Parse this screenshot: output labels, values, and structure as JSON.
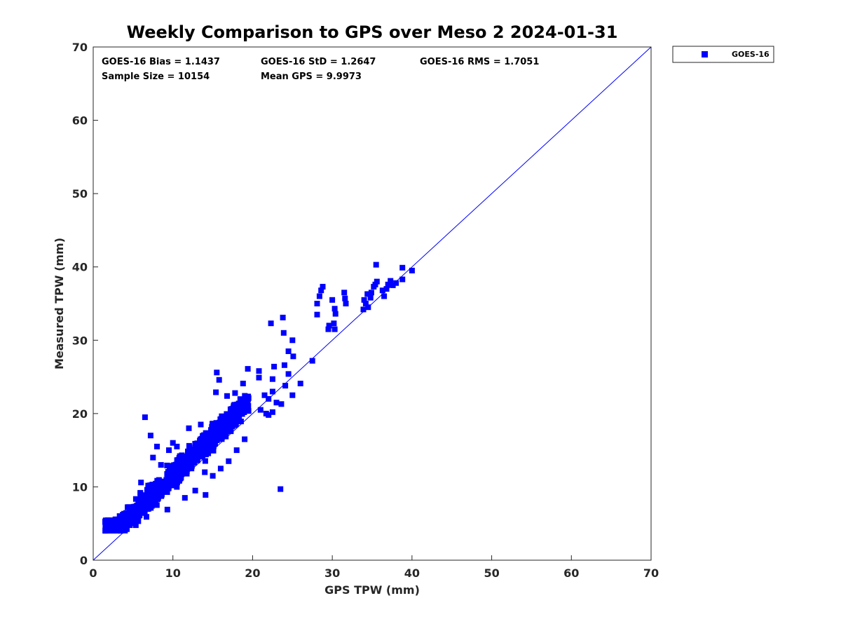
{
  "chart_data": {
    "type": "scatter",
    "title": "Weekly Comparison to GPS over Meso 2 2024-01-31",
    "xlabel": "GPS TPW (mm)",
    "ylabel": "Measured TPW (mm)",
    "xlim": [
      0,
      70
    ],
    "ylim": [
      0,
      70
    ],
    "xticks": [
      "0",
      "10",
      "20",
      "30",
      "40",
      "50",
      "60",
      "70"
    ],
    "yticks": [
      "0",
      "10",
      "20",
      "30",
      "40",
      "50",
      "60",
      "70"
    ],
    "grid": false,
    "legend_position": "outside-top-right",
    "series": [
      {
        "name": "GOES-16",
        "color": "#0000ff",
        "marker": "square",
        "dense_cloud": {
          "x_range": [
            1.5,
            19.5
          ],
          "slope": 1.06,
          "offset": 0.9,
          "spread": 1.6,
          "n": 900
        },
        "outliers": [
          [
            23.5,
            9.7
          ],
          [
            22.3,
            32.3
          ],
          [
            23.8,
            33.1
          ],
          [
            23.9,
            31.0
          ],
          [
            24.5,
            28.5
          ],
          [
            25.0,
            30.0
          ],
          [
            25.1,
            27.8
          ],
          [
            24.0,
            26.6
          ],
          [
            22.7,
            26.4
          ],
          [
            24.5,
            25.4
          ],
          [
            24.1,
            23.8
          ],
          [
            26.0,
            24.1
          ],
          [
            22.5,
            24.7
          ],
          [
            20.8,
            25.8
          ],
          [
            19.4,
            26.1
          ],
          [
            20.8,
            24.9
          ],
          [
            21.5,
            22.5
          ],
          [
            22.0,
            22.0
          ],
          [
            22.5,
            23.0
          ],
          [
            23.0,
            21.5
          ],
          [
            25.0,
            22.5
          ],
          [
            23.6,
            21.3
          ],
          [
            21.0,
            20.5
          ],
          [
            22.0,
            19.8
          ],
          [
            22.5,
            20.2
          ],
          [
            21.7,
            20.0
          ],
          [
            27.5,
            27.2
          ],
          [
            28.1,
            35.0
          ],
          [
            28.4,
            36.0
          ],
          [
            28.6,
            36.8
          ],
          [
            28.8,
            37.3
          ],
          [
            28.1,
            33.5
          ],
          [
            30.0,
            35.5
          ],
          [
            30.3,
            34.3
          ],
          [
            30.4,
            33.6
          ],
          [
            30.2,
            32.3
          ],
          [
            30.3,
            31.5
          ],
          [
            29.5,
            31.5
          ],
          [
            29.6,
            32.0
          ],
          [
            31.5,
            36.5
          ],
          [
            31.6,
            35.7
          ],
          [
            31.7,
            35.0
          ],
          [
            34.0,
            35.5
          ],
          [
            34.2,
            35.0
          ],
          [
            34.5,
            34.5
          ],
          [
            34.4,
            36.3
          ],
          [
            34.9,
            36.5
          ],
          [
            35.2,
            37.3
          ],
          [
            35.4,
            37.6
          ],
          [
            35.6,
            38.0
          ],
          [
            35.5,
            40.3
          ],
          [
            36.3,
            36.8
          ],
          [
            36.5,
            36.0
          ],
          [
            37.0,
            37.6
          ],
          [
            37.3,
            38.1
          ],
          [
            37.6,
            37.5
          ],
          [
            38.0,
            37.8
          ],
          [
            38.8,
            39.9
          ],
          [
            38.8,
            38.3
          ],
          [
            40.0,
            39.5
          ],
          [
            33.9,
            34.2
          ],
          [
            34.8,
            35.8
          ],
          [
            36.8,
            37.0
          ],
          [
            6.5,
            19.5
          ],
          [
            7.2,
            17.0
          ],
          [
            8.0,
            15.5
          ],
          [
            9.5,
            15.0
          ],
          [
            10.0,
            16.0
          ],
          [
            10.5,
            15.5
          ],
          [
            12.0,
            18.0
          ],
          [
            13.5,
            18.5
          ],
          [
            15.5,
            25.6
          ],
          [
            15.8,
            24.6
          ],
          [
            15.4,
            22.9
          ],
          [
            16.8,
            22.4
          ],
          [
            17.8,
            22.8
          ],
          [
            18.8,
            24.1
          ],
          [
            6.0,
            10.6
          ],
          [
            7.5,
            14.0
          ],
          [
            8.5,
            13.0
          ],
          [
            9.3,
            6.9
          ],
          [
            11.5,
            8.5
          ],
          [
            12.8,
            9.5
          ],
          [
            14.1,
            8.9
          ],
          [
            15.0,
            11.5
          ],
          [
            16.0,
            12.5
          ],
          [
            17.0,
            13.5
          ],
          [
            18.0,
            15.0
          ],
          [
            19.0,
            16.5
          ],
          [
            14.0,
            12.0
          ]
        ]
      }
    ],
    "identity_line": true,
    "stats": {
      "bias": "GOES-16 Bias = 1.1437",
      "std": "GOES-16 StD = 1.2647",
      "rms": "GOES-16 RMS = 1.7051",
      "sample_size": "Sample Size = 10154",
      "mean_gps": "Mean GPS = 9.9973"
    },
    "legend_label": "GOES-16"
  }
}
